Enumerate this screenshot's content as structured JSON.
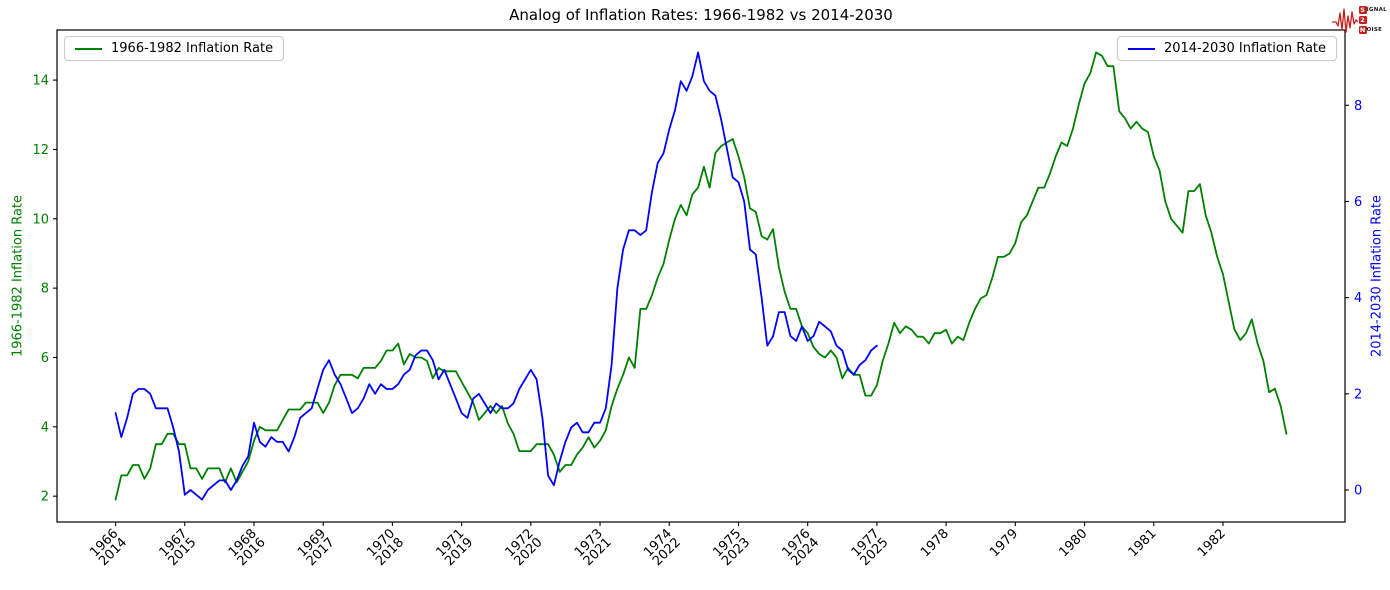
{
  "page": {
    "title": "Analog of Inflation Rates: 1966-1982 vs 2014-2030"
  },
  "logo": {
    "line1_initial": "S",
    "line1_rest": "IGNAL",
    "line2_initial": "2",
    "line2_rest": "",
    "line3_initial": "N",
    "line3_rest": "OISE",
    "accent_color": "#c41e1e"
  },
  "legends": {
    "left": {
      "label": "1966-1982 Inflation Rate",
      "color": "#008000"
    },
    "right": {
      "label": "2014-2030 Inflation Rate",
      "color": "#0000ff"
    }
  },
  "chart_data": {
    "type": "line",
    "title": "Analog of Inflation Rates: 1966-1982 vs 2014-2030",
    "grid": false,
    "x_tick_labels": [
      [
        "1966",
        "2014"
      ],
      [
        "1967",
        "2015"
      ],
      [
        "1968",
        "2016"
      ],
      [
        "1969",
        "2017"
      ],
      [
        "1970",
        "2018"
      ],
      [
        "1971",
        "2019"
      ],
      [
        "1972",
        "2020"
      ],
      [
        "1973",
        "2021"
      ],
      [
        "1974",
        "2022"
      ],
      [
        "1975",
        "2023"
      ],
      [
        "1976",
        "2024"
      ],
      [
        "1977",
        "2025"
      ],
      [
        "1978"
      ],
      [
        "1979"
      ],
      [
        "1980"
      ],
      [
        "1981"
      ],
      [
        "1982"
      ]
    ],
    "xlim": [
      -0.846,
      17.763
    ],
    "left_axis": {
      "label": "1966-1982 Inflation Rate",
      "color": "#008000",
      "ticks": [
        2,
        4,
        6,
        8,
        10,
        12,
        14
      ],
      "ylim": [
        1.255,
        15.445
      ]
    },
    "right_axis": {
      "label": "2014-2030 Inflation Rate",
      "color": "#0000ff",
      "ticks": [
        0,
        2,
        4,
        6,
        8
      ],
      "ylim": [
        -0.665,
        9.565
      ]
    },
    "legend_positions": {
      "left": "upper left",
      "right": "upper right"
    },
    "series": [
      {
        "name": "1966-1982 Inflation Rate",
        "axis": "left",
        "color": "#008000",
        "start": "1966-01",
        "frequency": "monthly",
        "values": [
          1.9,
          2.6,
          2.6,
          2.9,
          2.9,
          2.5,
          2.8,
          3.5,
          3.5,
          3.8,
          3.8,
          3.5,
          3.5,
          2.8,
          2.8,
          2.5,
          2.8,
          2.8,
          2.8,
          2.4,
          2.8,
          2.4,
          2.7,
          3.0,
          3.6,
          4.0,
          3.9,
          3.9,
          3.9,
          4.2,
          4.5,
          4.5,
          4.5,
          4.7,
          4.7,
          4.7,
          4.4,
          4.7,
          5.2,
          5.5,
          5.5,
          5.5,
          5.4,
          5.7,
          5.7,
          5.7,
          5.9,
          6.2,
          6.2,
          6.4,
          5.8,
          6.1,
          6.0,
          6.0,
          5.9,
          5.4,
          5.7,
          5.6,
          5.6,
          5.6,
          5.3,
          5.0,
          4.7,
          4.2,
          4.4,
          4.6,
          4.4,
          4.6,
          4.1,
          3.8,
          3.3,
          3.3,
          3.3,
          3.5,
          3.5,
          3.5,
          3.2,
          2.7,
          2.9,
          2.9,
          3.2,
          3.4,
          3.7,
          3.4,
          3.6,
          3.9,
          4.6,
          5.1,
          5.5,
          6.0,
          5.7,
          7.4,
          7.4,
          7.8,
          8.3,
          8.7,
          9.4,
          10.0,
          10.4,
          10.1,
          10.7,
          10.9,
          11.5,
          10.9,
          11.9,
          12.1,
          12.2,
          12.3,
          11.8,
          11.2,
          10.3,
          10.2,
          9.5,
          9.4,
          9.7,
          8.6,
          7.9,
          7.4,
          7.4,
          6.9,
          6.7,
          6.3,
          6.1,
          6.0,
          6.2,
          6.0,
          5.4,
          5.7,
          5.5,
          5.5,
          4.9,
          4.9,
          5.2,
          5.9,
          6.4,
          7.0,
          6.7,
          6.9,
          6.8,
          6.6,
          6.6,
          6.4,
          6.7,
          6.7,
          6.8,
          6.4,
          6.6,
          6.5,
          7.0,
          7.4,
          7.7,
          7.8,
          8.3,
          8.9,
          8.9,
          9.0,
          9.3,
          9.9,
          10.1,
          10.5,
          10.9,
          10.9,
          11.3,
          11.8,
          12.2,
          12.1,
          12.6,
          13.3,
          13.9,
          14.2,
          14.8,
          14.7,
          14.4,
          14.4,
          13.1,
          12.9,
          12.6,
          12.8,
          12.6,
          12.5,
          11.8,
          11.4,
          10.5,
          10.0,
          9.8,
          9.6,
          10.8,
          10.8,
          11.0,
          10.1,
          9.6,
          8.9,
          8.4,
          7.6,
          6.8,
          6.5,
          6.7,
          7.1,
          6.4,
          5.9,
          5.0,
          5.1,
          4.6,
          3.8
        ]
      },
      {
        "name": "2014-2030 Inflation Rate",
        "axis": "right",
        "color": "#0000ff",
        "start": "2014-01",
        "frequency": "monthly",
        "values": [
          1.6,
          1.1,
          1.5,
          2.0,
          2.1,
          2.1,
          2.0,
          1.7,
          1.7,
          1.7,
          1.3,
          0.8,
          -0.1,
          0.0,
          -0.1,
          -0.2,
          0.0,
          0.1,
          0.2,
          0.2,
          0.0,
          0.2,
          0.5,
          0.7,
          1.4,
          1.0,
          0.9,
          1.1,
          1.0,
          1.0,
          0.8,
          1.1,
          1.5,
          1.6,
          1.7,
          2.1,
          2.5,
          2.7,
          2.4,
          2.2,
          1.9,
          1.6,
          1.7,
          1.9,
          2.2,
          2.0,
          2.2,
          2.1,
          2.1,
          2.2,
          2.4,
          2.5,
          2.8,
          2.9,
          2.9,
          2.7,
          2.3,
          2.5,
          2.2,
          1.9,
          1.6,
          1.5,
          1.9,
          2.0,
          1.8,
          1.6,
          1.8,
          1.7,
          1.7,
          1.8,
          2.1,
          2.3,
          2.5,
          2.3,
          1.5,
          0.3,
          0.1,
          0.6,
          1.0,
          1.3,
          1.4,
          1.2,
          1.2,
          1.4,
          1.4,
          1.7,
          2.6,
          4.2,
          5.0,
          5.4,
          5.4,
          5.3,
          5.4,
          6.2,
          6.8,
          7.0,
          7.5,
          7.9,
          8.5,
          8.3,
          8.6,
          9.1,
          8.5,
          8.3,
          8.2,
          7.7,
          7.1,
          6.5,
          6.4,
          6.0,
          5.0,
          4.9,
          4.0,
          3.0,
          3.2,
          3.7,
          3.7,
          3.2,
          3.1,
          3.4,
          3.1,
          3.2,
          3.5,
          3.4,
          3.3,
          3.0,
          2.9,
          2.5,
          2.4,
          2.6,
          2.7,
          2.9,
          3.0
        ]
      }
    ]
  }
}
